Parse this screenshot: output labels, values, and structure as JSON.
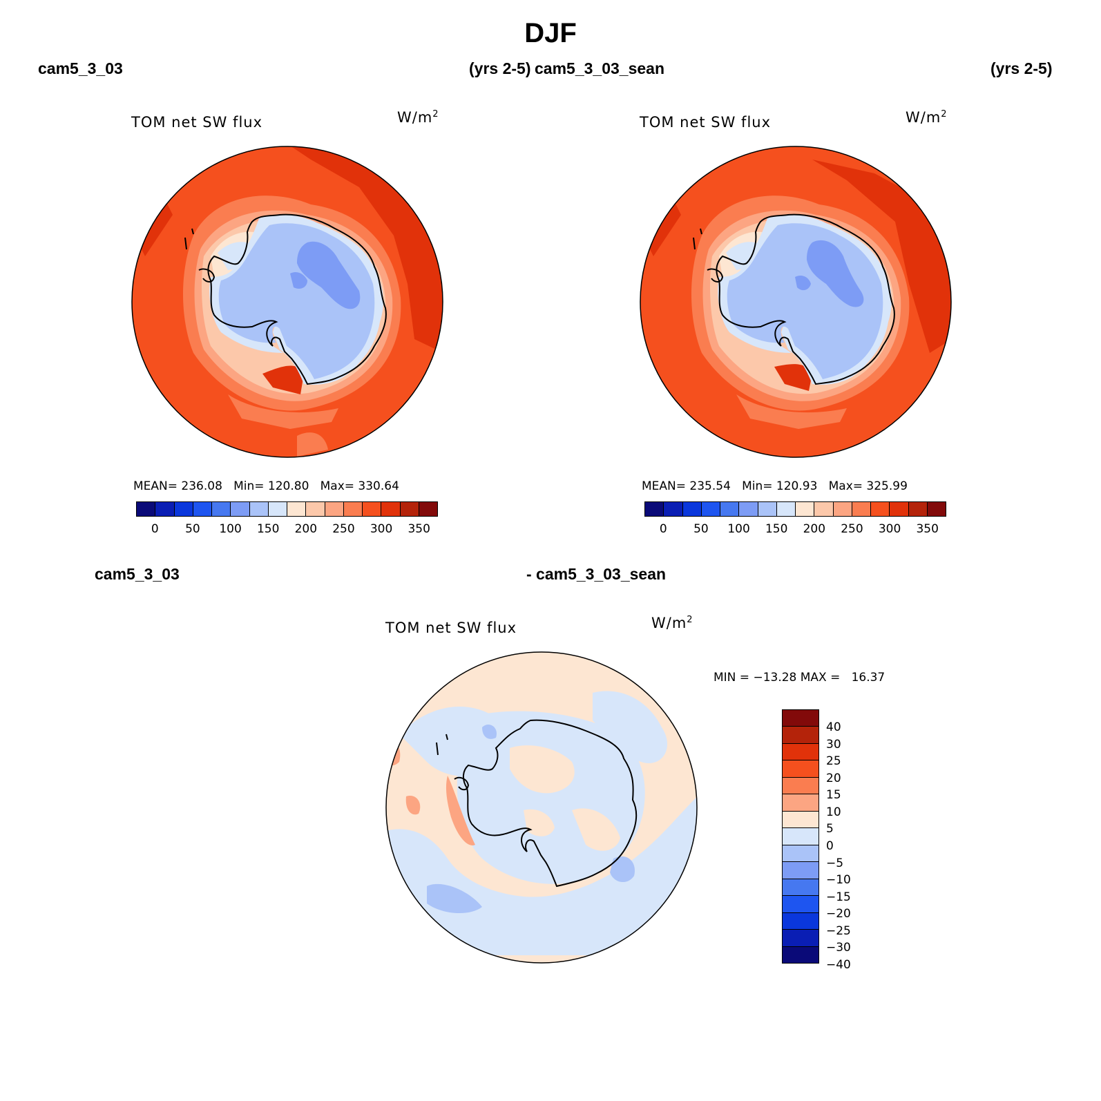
{
  "title": "DJF",
  "panels": {
    "top_left": {
      "run": "cam5_3_03",
      "years": "(yrs 2-5)",
      "variable": "TOM net SW flux",
      "units_base": "W/m",
      "units_exp": "2",
      "stats": "MEAN= 236.08   Min= 120.80   Max= 330.64"
    },
    "top_right": {
      "run": "cam5_3_03_sean",
      "years": "(yrs 2-5)",
      "variable": "TOM net SW flux",
      "units_base": "W/m",
      "units_exp": "2",
      "stats": "MEAN= 235.54   Min= 120.93   Max= 325.99"
    },
    "diff": {
      "run_a": "cam5_3_03",
      "run_b": "- cam5_3_03_sean",
      "variable": "TOM net SW flux",
      "units_base": "W/m",
      "units_exp": "2",
      "stats": "MIN = −13.28 MAX =   16.37"
    }
  },
  "colorbars": {
    "absolute": {
      "colors": [
        "#0a0a78",
        "#0a1eb4",
        "#0a37dc",
        "#1e55f0",
        "#4678f0",
        "#7d9cf5",
        "#aac3f8",
        "#d7e6fa",
        "#fde6d2",
        "#fcc8aa",
        "#fca582",
        "#fa7d50",
        "#f5501e",
        "#e1320a",
        "#b4230a",
        "#820a0a"
      ],
      "labels": [
        "0",
        "50",
        "100",
        "150",
        "200",
        "250",
        "300",
        "350"
      ]
    },
    "difference": {
      "colors_top_to_bottom": [
        "#820a0a",
        "#b4230a",
        "#e1320a",
        "#f5501e",
        "#fa7d50",
        "#fca582",
        "#fde6d2",
        "#d7e6fa",
        "#aac3f8",
        "#7d9cf5",
        "#4678f0",
        "#1e55f0",
        "#0a37dc",
        "#0a1eb4",
        "#0a0a78"
      ],
      "labels": [
        "40",
        "30",
        "25",
        "20",
        "15",
        "10",
        "5",
        "0",
        "−5",
        "−10",
        "−15",
        "−20",
        "−25",
        "−30",
        "−40"
      ]
    }
  },
  "colors": {
    "ocean_abs": "#f5501e",
    "ocean_high": "#e1320a",
    "seaice_ring": "#fcc8aa",
    "antarctica": "#aac3f8",
    "antarctica_low": "#7d9cf5",
    "diff_pos": "#fde6d2",
    "diff_neg": "#d7e6fa"
  }
}
